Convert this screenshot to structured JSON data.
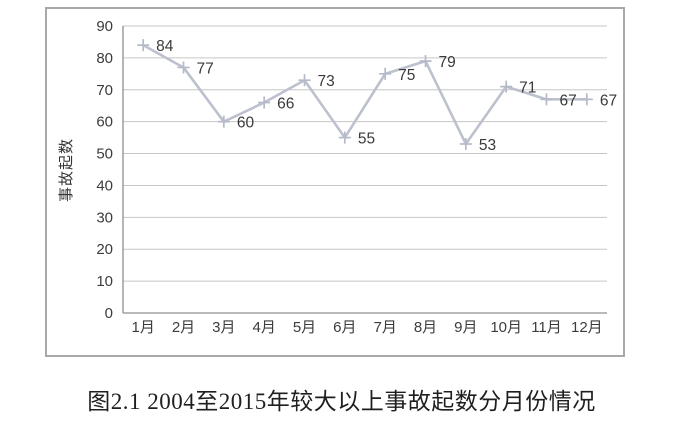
{
  "figure": {
    "caption": "图2.1 2004至2015年较大以上事故起数分月份情况"
  },
  "chart_data": {
    "type": "line",
    "title": "",
    "categories": [
      "1月",
      "2月",
      "3月",
      "4月",
      "5月",
      "6月",
      "7月",
      "8月",
      "9月",
      "10月",
      "11月",
      "12月"
    ],
    "series": [
      {
        "name": "事故起数",
        "values": [
          84,
          77,
          60,
          66,
          73,
          55,
          75,
          79,
          53,
          71,
          67,
          67
        ]
      }
    ],
    "xlabel": "",
    "ylabel": "事故起数",
    "ylim": [
      0,
      90
    ],
    "ytick_step": 10,
    "grid": true,
    "legend_position": "none",
    "data_labels": true,
    "marker": "plus",
    "colors": {
      "line": "#bcc1cd",
      "marker": "#b4bac7",
      "grid": "#c6c6c6",
      "axis": "#8f8f8f",
      "border": "#a8a8a8",
      "tick_text": "#3c3c3c",
      "data_label_text": "#3a3a3a",
      "axis_title_text": "#333333"
    }
  }
}
